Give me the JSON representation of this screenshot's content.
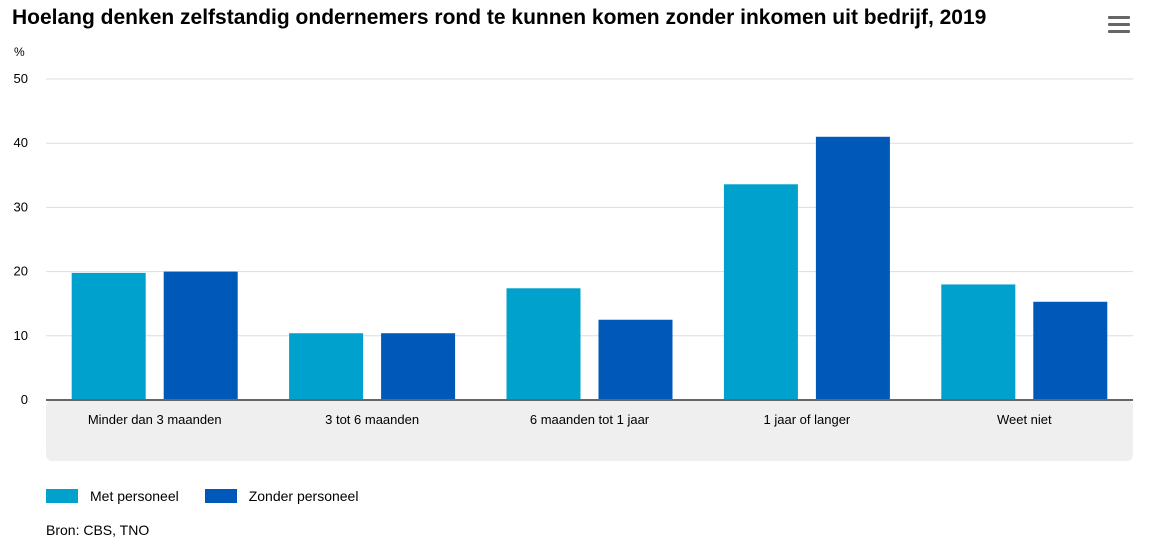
{
  "title": "Hoelang denken zelfstandig ondernemers rond te kunnen komen zonder inkomen uit bedrijf, 2019",
  "menu_icon": "hamburger-menu-icon",
  "source": "Bron: CBS, TNO",
  "colors": {
    "series_0": "#00a1cd",
    "series_1": "#0058b8",
    "grid": "#dddddd",
    "axis": "#666666",
    "label_band": "#efefef"
  },
  "chart_data": {
    "type": "bar",
    "title": "Hoelang denken zelfstandig ondernemers rond te kunnen komen zonder inkomen uit bedrijf, 2019",
    "ylabel": "%",
    "xlabel": "",
    "ylim": [
      0,
      50
    ],
    "yticks": [
      "0",
      "10",
      "20",
      "30",
      "40",
      "50"
    ],
    "categories": [
      "Minder dan 3 maanden",
      "3 tot 6 maanden",
      "6 maanden tot 1 jaar",
      "1 jaar of langer",
      "Weet niet"
    ],
    "series": [
      {
        "name": "Met personeel",
        "values": [
          19.8,
          10.4,
          17.4,
          33.6,
          18.0
        ]
      },
      {
        "name": "Zonder personeel",
        "values": [
          20.0,
          10.4,
          12.5,
          41.0,
          15.3
        ]
      }
    ],
    "grid": true,
    "legend": "bottom-left"
  }
}
